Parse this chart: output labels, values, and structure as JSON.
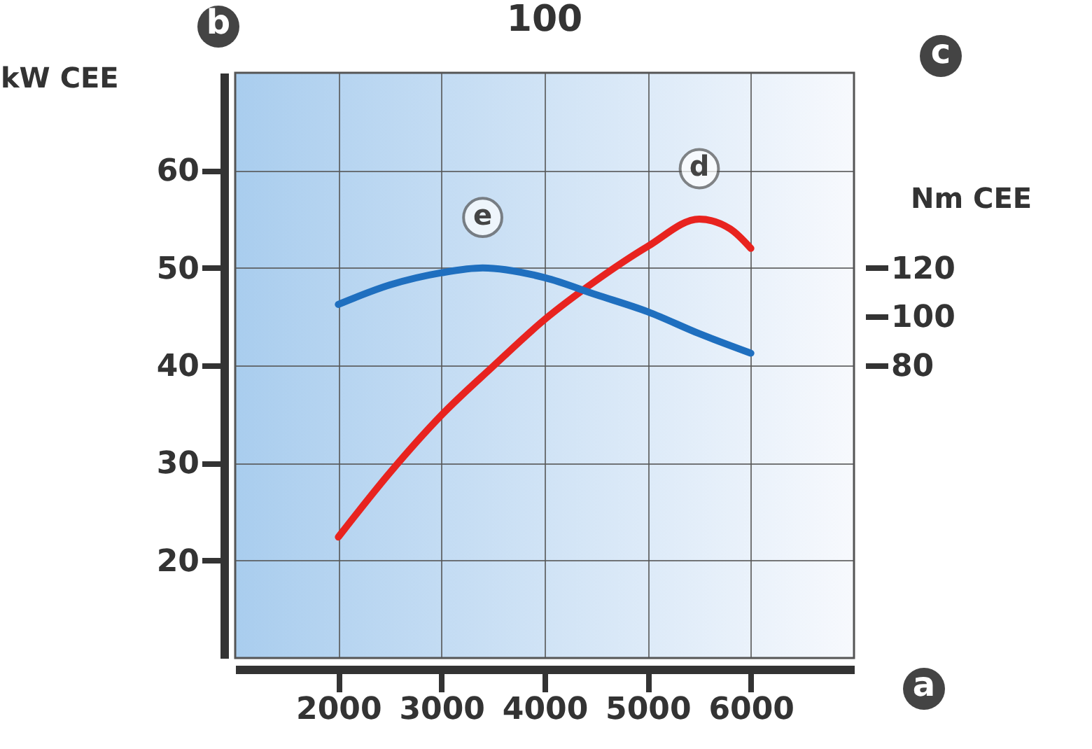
{
  "chart_data": {
    "type": "line",
    "title": "100",
    "ylabel": "kW CEE",
    "y2label": "Nm CEE",
    "xlim": [
      1000,
      7000
    ],
    "xticks": [
      2000,
      3000,
      4000,
      5000,
      6000
    ],
    "ylim": [
      10,
      70
    ],
    "yticks": [
      20,
      30,
      40,
      50,
      60
    ],
    "y2lim": [
      -40,
      200
    ],
    "y2ticks": [
      80,
      100,
      120
    ],
    "grid": true,
    "marker": "none",
    "line_style": "solid",
    "series": [
      {
        "name": "d",
        "color": "#e8231f",
        "x": [
          2000,
          2500,
          3000,
          3500,
          4000,
          4500,
          5000,
          5500,
          5800,
          6000
        ],
        "values": [
          22.4,
          29,
          34.9,
          39.9,
          44.7,
          48.7,
          52.2,
          55,
          54,
          52
        ]
      },
      {
        "name": "e",
        "color": "#1f6fbf",
        "axis": "y2",
        "x": [
          2000,
          2500,
          3000,
          3400,
          4000,
          4500,
          5000,
          5500,
          6000
        ],
        "values": [
          105,
          113,
          118,
          120,
          116,
          109,
          102,
          93,
          85
        ]
      }
    ],
    "annotations": [
      "b",
      "c",
      "a"
    ]
  }
}
